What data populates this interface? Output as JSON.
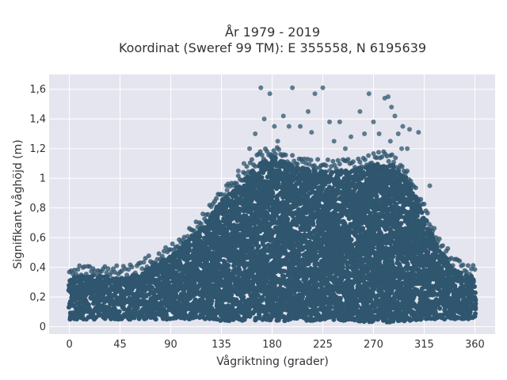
{
  "chart_data": {
    "type": "scatter",
    "title_lines": [
      "År 1979 - 2019",
      "Koordinat (Sweref 99 TM): E 355558, N 6195639"
    ],
    "xlabel": "Vågriktning (grader)",
    "ylabel": "Signifikant våghöjd (m)",
    "xlim": [
      -18,
      378
    ],
    "ylim": [
      -0.05,
      1.7
    ],
    "x_ticks": [
      0,
      45,
      90,
      135,
      180,
      225,
      270,
      315,
      360
    ],
    "x_tick_labels": [
      "0",
      "45",
      "90",
      "135",
      "180",
      "225",
      "270",
      "315",
      "360"
    ],
    "y_ticks": [
      0,
      0.2,
      0.4,
      0.6,
      0.8,
      1.0,
      1.2,
      1.4,
      1.6
    ],
    "y_tick_labels": [
      "0",
      "0,2",
      "0,4",
      "0,6",
      "0,8",
      "1",
      "1,2",
      "1,4",
      "1,6"
    ],
    "grid": true,
    "marker_color": "#2f566e",
    "plot_background": "#e5e5ef",
    "envelope": {
      "x": [
        0,
        20,
        45,
        60,
        75,
        90,
        105,
        120,
        135,
        150,
        165,
        180,
        200,
        225,
        250,
        270,
        285,
        300,
        315,
        330,
        345,
        360
      ],
      "y_max": [
        0.33,
        0.35,
        0.33,
        0.35,
        0.42,
        0.48,
        0.58,
        0.7,
        0.85,
        0.95,
        1.08,
        1.15,
        1.08,
        1.05,
        1.05,
        1.1,
        1.1,
        1.0,
        0.75,
        0.5,
        0.37,
        0.33
      ],
      "y_min": [
        0.05,
        0.05,
        0.05,
        0.05,
        0.05,
        0.05,
        0.05,
        0.05,
        0.04,
        0.04,
        0.04,
        0.04,
        0.04,
        0.04,
        0.04,
        0.03,
        0.03,
        0.04,
        0.05,
        0.05,
        0.05,
        0.05
      ]
    },
    "outliers": {
      "x": [
        170,
        173,
        178,
        182,
        198,
        212,
        218,
        225,
        231,
        258,
        262,
        266,
        270,
        280,
        283,
        286,
        289,
        292,
        296,
        302,
        165,
        190,
        205,
        240,
        250,
        275,
        300,
        310,
        160,
        185,
        215,
        235,
        245,
        285,
        295,
        320,
        140,
        150,
        155,
        195
      ],
      "y": [
        1.61,
        1.4,
        1.57,
        1.35,
        1.61,
        1.45,
        1.57,
        1.61,
        1.38,
        1.45,
        1.3,
        1.57,
        1.38,
        1.54,
        1.55,
        1.48,
        1.42,
        1.3,
        1.35,
        1.33,
        1.3,
        1.42,
        1.35,
        1.38,
        1.28,
        1.3,
        1.2,
        1.31,
        1.2,
        1.25,
        1.31,
        1.25,
        1.2,
        1.25,
        1.2,
        0.95,
        0.92,
        1.05,
        1.1,
        1.35
      ]
    }
  }
}
